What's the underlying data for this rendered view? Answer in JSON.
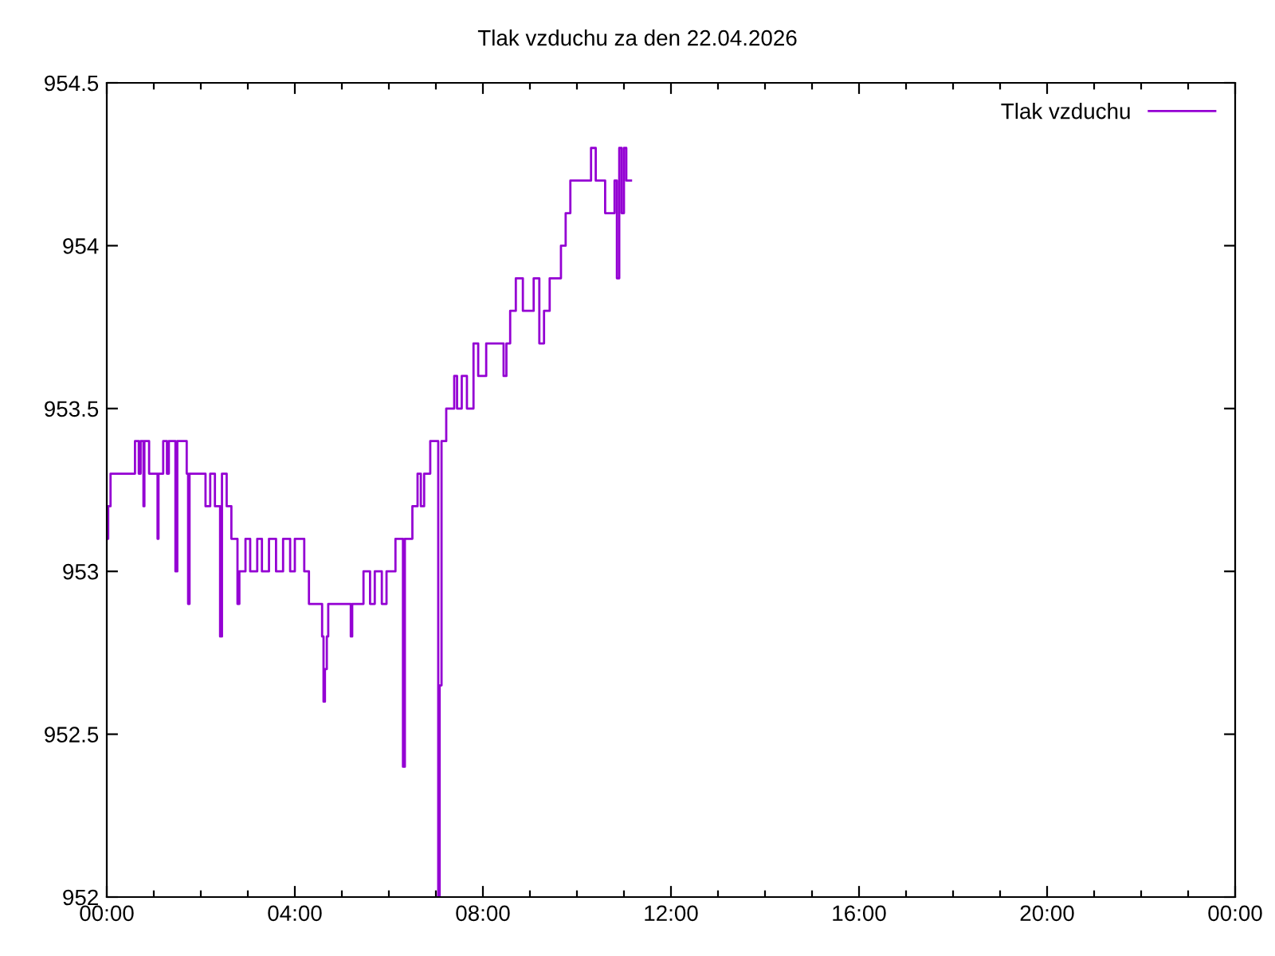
{
  "chart_data": {
    "type": "step",
    "title": "Tlak vzduchu za den 22.04.2026",
    "xlim": [
      0,
      24
    ],
    "ylim": [
      952,
      954.5
    ],
    "xticks": [
      {
        "value": 0,
        "label": "00:00"
      },
      {
        "value": 1,
        "label": null
      },
      {
        "value": 2,
        "label": null
      },
      {
        "value": 3,
        "label": null
      },
      {
        "value": 4,
        "label": "04:00"
      },
      {
        "value": 5,
        "label": null
      },
      {
        "value": 6,
        "label": null
      },
      {
        "value": 7,
        "label": null
      },
      {
        "value": 8,
        "label": "08:00"
      },
      {
        "value": 9,
        "label": null
      },
      {
        "value": 10,
        "label": null
      },
      {
        "value": 11,
        "label": null
      },
      {
        "value": 12,
        "label": "12:00"
      },
      {
        "value": 13,
        "label": null
      },
      {
        "value": 14,
        "label": null
      },
      {
        "value": 15,
        "label": null
      },
      {
        "value": 16,
        "label": "16:00"
      },
      {
        "value": 17,
        "label": null
      },
      {
        "value": 18,
        "label": null
      },
      {
        "value": 19,
        "label": null
      },
      {
        "value": 20,
        "label": "20:00"
      },
      {
        "value": 21,
        "label": null
      },
      {
        "value": 22,
        "label": null
      },
      {
        "value": 23,
        "label": null
      },
      {
        "value": 24,
        "label": "00:00"
      }
    ],
    "yticks": [
      952,
      952.5,
      953,
      953.5,
      954,
      954.5
    ],
    "grid": false,
    "legend": "top right",
    "line_style": "solid",
    "marker": "none",
    "series": [
      {
        "name": "Tlak vzduchu",
        "color": "#9400d3",
        "x": [
          0.0,
          0.03,
          0.08,
          0.6,
          0.68,
          0.72,
          0.78,
          0.8,
          0.9,
          1.08,
          1.1,
          1.2,
          1.28,
          1.32,
          1.46,
          1.5,
          1.7,
          1.73,
          1.76,
          2.1,
          2.2,
          2.3,
          2.41,
          2.45,
          2.55,
          2.65,
          2.78,
          2.82,
          2.95,
          3.05,
          3.2,
          3.3,
          3.45,
          3.6,
          3.75,
          3.9,
          4.0,
          4.2,
          4.3,
          4.58,
          4.61,
          4.64,
          4.68,
          4.71,
          5.19,
          5.22,
          5.25,
          5.46,
          5.6,
          5.7,
          5.85,
          5.95,
          6.14,
          6.27,
          6.3,
          6.34,
          6.5,
          6.61,
          6.68,
          6.75,
          6.88,
          7.05,
          7.08,
          7.12,
          7.22,
          7.39,
          7.45,
          7.55,
          7.66,
          7.8,
          7.9,
          8.07,
          8.44,
          8.5,
          8.58,
          8.7,
          8.85,
          9.08,
          9.2,
          9.3,
          9.42,
          9.66,
          9.76,
          9.86,
          10.3,
          10.4,
          10.6,
          10.8,
          10.85,
          10.9,
          10.95,
          11.0,
          11.05,
          11.15
        ],
        "values": [
          953.1,
          953.2,
          953.3,
          953.4,
          953.3,
          953.4,
          953.2,
          953.4,
          953.3,
          953.1,
          953.3,
          953.4,
          953.3,
          953.4,
          953.0,
          953.4,
          953.3,
          952.9,
          953.3,
          953.2,
          953.3,
          953.2,
          952.8,
          953.3,
          953.2,
          953.1,
          952.9,
          953.0,
          953.1,
          953.0,
          953.1,
          953.0,
          953.1,
          953.0,
          953.1,
          953.0,
          953.1,
          953.0,
          952.9,
          952.8,
          952.6,
          952.7,
          952.8,
          952.9,
          952.8,
          952.9,
          952.9,
          953.0,
          952.9,
          953.0,
          952.9,
          953.0,
          953.1,
          953.1,
          952.4,
          953.1,
          953.2,
          953.3,
          953.2,
          953.3,
          953.4,
          952.0,
          952.65,
          953.4,
          953.5,
          953.6,
          953.5,
          953.6,
          953.5,
          953.7,
          953.6,
          953.7,
          953.6,
          953.7,
          953.8,
          953.9,
          953.8,
          953.9,
          953.7,
          953.8,
          953.9,
          954.0,
          954.1,
          954.2,
          954.3,
          954.2,
          954.1,
          954.2,
          953.9,
          954.3,
          954.1,
          954.3,
          954.2,
          954.2
        ]
      }
    ]
  }
}
